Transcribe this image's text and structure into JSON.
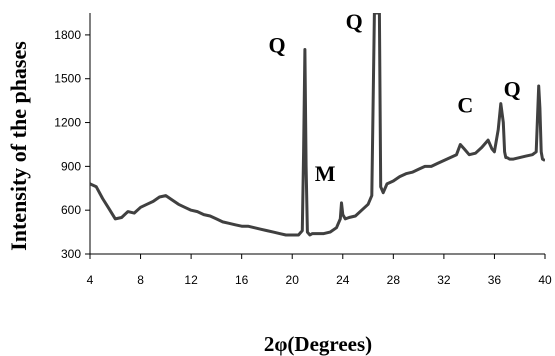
{
  "chart_data": {
    "type": "line",
    "xlabel": "2φ(Degrees)",
    "ylabel": "Intensity of the phases",
    "xlim": [
      4,
      40
    ],
    "ylim": [
      300,
      1950
    ],
    "x_ticks": [
      "4",
      "8",
      "12",
      "16",
      "20",
      "24",
      "28",
      "32",
      "36",
      "40"
    ],
    "y_ticks": [
      "300",
      "600",
      "900",
      "1200",
      "1500",
      "1800"
    ],
    "grid": false,
    "line_color": "#404040",
    "series": [
      {
        "x": [
          4,
          4.5,
          5,
          5.5,
          6,
          6.5,
          7,
          7.5,
          8,
          8.5,
          9,
          9.5,
          10,
          10.5,
          11,
          11.5,
          12,
          12.5,
          13,
          13.5,
          14,
          14.5,
          15,
          15.5,
          16,
          16.5,
          17,
          17.5,
          18,
          18.5,
          19,
          19.5,
          20,
          20.5,
          20.8,
          20.9,
          21,
          21.1,
          21.2,
          21.4,
          21.6,
          22,
          22.5,
          23,
          23.5,
          23.8,
          23.9,
          24,
          24.2,
          24.5,
          25,
          25.5,
          26,
          26.3,
          26.5,
          26.6,
          26.7,
          26.8,
          26.9,
          27,
          27.2,
          27.5,
          28,
          28.5,
          29,
          29.5,
          30,
          30.5,
          31,
          31.5,
          32,
          32.5,
          33,
          33.3,
          33.6,
          34,
          34.5,
          35,
          35.5,
          35.8,
          36,
          36.3,
          36.5,
          36.7,
          36.8,
          36.9,
          37,
          37.2,
          37.5,
          38,
          38.5,
          39,
          39.3,
          39.5,
          39.6,
          39.7,
          39.8,
          40
        ],
        "values": [
          780,
          760,
          680,
          610,
          540,
          550,
          590,
          580,
          620,
          640,
          660,
          690,
          700,
          670,
          640,
          620,
          600,
          590,
          570,
          560,
          540,
          520,
          510,
          500,
          490,
          490,
          480,
          470,
          460,
          450,
          440,
          430,
          430,
          430,
          460,
          1000,
          1700,
          900,
          450,
          430,
          440,
          440,
          440,
          450,
          480,
          540,
          650,
          570,
          540,
          550,
          560,
          600,
          640,
          700,
          1950,
          1950,
          1950,
          1950,
          1950,
          760,
          720,
          780,
          800,
          830,
          850,
          860,
          880,
          900,
          900,
          920,
          940,
          960,
          980,
          1050,
          1020,
          980,
          990,
          1030,
          1080,
          1020,
          1000,
          1150,
          1330,
          1200,
          1000,
          960,
          960,
          950,
          950,
          960,
          970,
          980,
          1000,
          1450,
          1300,
          1000,
          950,
          940
        ]
      }
    ],
    "annotations": [
      {
        "text": "Q",
        "x": 18.8,
        "y": 1680
      },
      {
        "text": "Q",
        "x": 24.9,
        "y": 1840
      },
      {
        "text": "M",
        "x": 22.6,
        "y": 800
      },
      {
        "text": "C",
        "x": 33.7,
        "y": 1270
      },
      {
        "text": "Q",
        "x": 37.4,
        "y": 1380
      }
    ]
  }
}
